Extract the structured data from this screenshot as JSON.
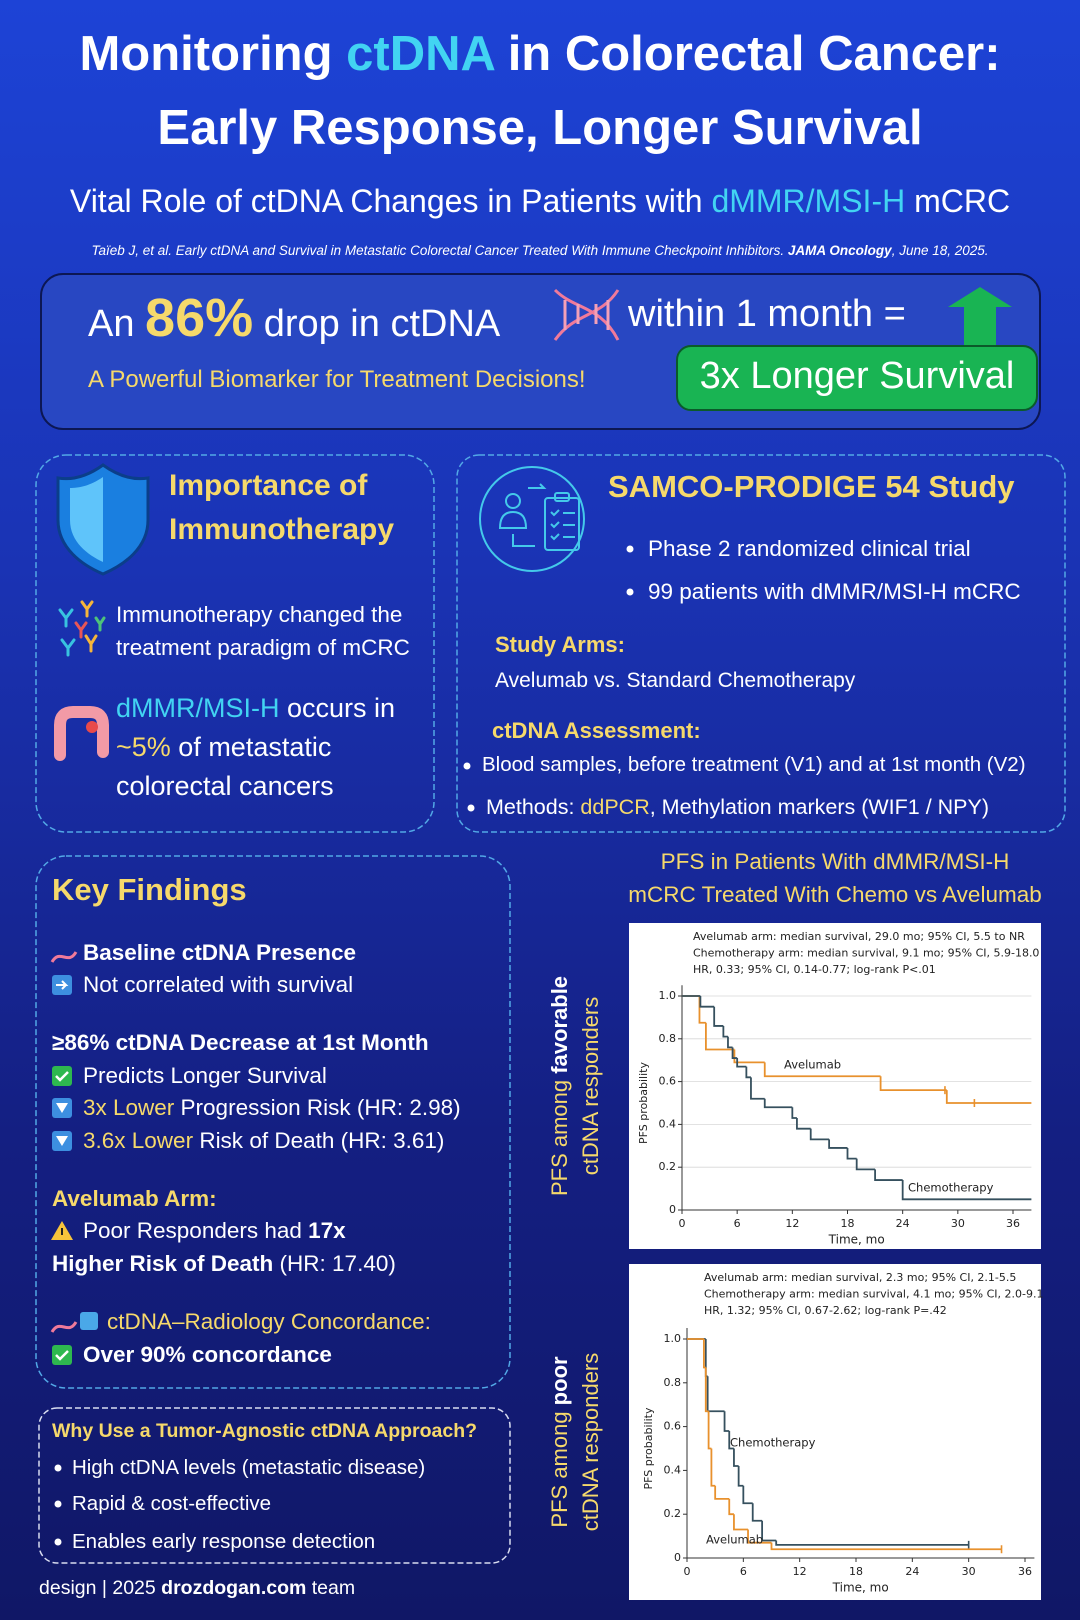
{
  "header": {
    "title_line1": [
      "Monitoring ",
      "ctDNA",
      " in Colorectal Cancer:"
    ],
    "title_line2": "Early Response, Longer Survival",
    "subtitle": [
      "Vital Role of ctDNA Changes in Patients with ",
      "dMMR/MSI-H",
      " mCRC"
    ],
    "citation": [
      "Taïeb J, et al. Early ctDNA and Survival in Metastatic Colorectal Cancer Treated With Immune Checkpoint Inhibitors. ",
      "JAMA Oncology",
      ", June 18, 2025."
    ]
  },
  "banner": {
    "line1": [
      "An ",
      "86%",
      " drop in ctDNA",
      "within 1 month ="
    ],
    "tagline": "A Powerful Biomarker for Treatment Decisions!",
    "result": "3x Longer Survival"
  },
  "immunotherapy": {
    "title_lines": [
      "Importance of",
      "Immunotherapy"
    ],
    "item1_lines": [
      "Immunotherapy changed the",
      "treatment paradigm of mCRC"
    ],
    "item2_lines": [
      [
        "dMMR/MSI-H",
        " occurs in"
      ],
      [
        "~5%",
        " of metastatic"
      ],
      "colorectal cancers"
    ]
  },
  "study": {
    "title": "SAMCO-PRODIGE 54 Study",
    "bullets": [
      "Phase 2 randomized clinical trial",
      "99 patients with dMMR/MSI-H mCRC"
    ],
    "arms_heading": "Study Arms:",
    "arms_text": "Avelumab vs. Standard Chemotherapy",
    "assessment_heading": "ctDNA Assessment:",
    "assessment_bullet1": "Blood samples, before treatment (V1) and at 1st month (V2)",
    "assessment_bullet2": [
      "Methods: ",
      "ddPCR",
      ", Methylation markers (WIF1 / NPY)"
    ]
  },
  "key_findings": {
    "title": "Key Findings",
    "baseline_heading": "Baseline ctDNA Presence",
    "baseline_text": "Not correlated with survival",
    "decrease_heading": "≥86% ctDNA Decrease at 1st Month",
    "decrease_item1": "Predicts Longer Survival",
    "decrease_item2": [
      "3x Lower",
      " Progression Risk (HR: 2.98)"
    ],
    "decrease_item3": [
      "3.6x Lower",
      " Risk of Death (HR: 3.61)"
    ],
    "avelumab_heading": "Avelumab Arm:",
    "avelumab_line1": [
      "Poor Responders had ",
      "17x"
    ],
    "avelumab_line2": [
      "Higher Risk of Death",
      " (HR: 17.40)"
    ],
    "concordance_heading": "ctDNA–Radiology Concordance:",
    "concordance_text": "Over 90% concordance"
  },
  "approach": {
    "title": "Why Use a Tumor-Agnostic ctDNA Approach?",
    "bullets": [
      "High ctDNA levels (metastatic disease)",
      "Rapid & cost-effective",
      "Enables early response detection"
    ]
  },
  "footer": [
    "design | 2025 ",
    "drozdogan.com",
    " team"
  ],
  "chart_section": {
    "title_lines": [
      "PFS in Patients With dMMR/MSI-H",
      "mCRC Treated With Chemo vs Avelumab"
    ]
  },
  "chart_data": [
    {
      "type": "step",
      "side_label": [
        [
          "PFS among ",
          "favorable"
        ],
        "ctDNA responders"
      ],
      "annotations": [
        "Avelumab arm: median survival, 29.0 mo; 95% CI, 5.5 to NR",
        "Chemotherapy arm: median survival, 9.1 mo; 95% CI, 5.9-18.0",
        "HR, 0.33; 95% CI, 0.14-0.77; log-rank P<.01"
      ],
      "ylabel": "PFS probability",
      "xlabel": "Time, mo",
      "xlim": [
        0,
        38
      ],
      "ylim": [
        0,
        1.05
      ],
      "xticks": [
        0,
        6,
        12,
        18,
        24,
        30,
        36
      ],
      "yticks": [
        0,
        0.2,
        0.4,
        0.6,
        0.8,
        {
          "value": 1,
          "label": "1.0"
        }
      ],
      "grid": true,
      "series": [
        {
          "name": "Avelumab",
          "color": "#e8912d",
          "x": [
            0,
            1.9,
            2.6,
            5.7,
            9,
            21.6,
            28.8,
            38
          ],
          "values": [
            1,
            0.875,
            0.75,
            0.69,
            0.625,
            0.56,
            0.5,
            0.5
          ],
          "censored_x": [
            28.6,
            31.8
          ],
          "censored_values": [
            0.56,
            0.5
          ]
        },
        {
          "name": "Chemotherapy",
          "color": "#36505e",
          "x": [
            0,
            2,
            3.5,
            4.5,
            5,
            5.5,
            6,
            7,
            7.5,
            9,
            12,
            12.5,
            14,
            16,
            18,
            19,
            21,
            24,
            38
          ],
          "values": [
            1,
            0.95,
            0.86,
            0.81,
            0.76,
            0.71,
            0.67,
            0.62,
            0.52,
            0.48,
            0.43,
            0.38,
            0.33,
            0.29,
            0.24,
            0.19,
            0.14,
            0.05,
            0.05
          ],
          "censored_x": [],
          "censored_values": []
        }
      ]
    },
    {
      "type": "step",
      "side_label": [
        [
          "PFS among ",
          "poor"
        ],
        "ctDNA responders"
      ],
      "annotations": [
        "Avelumab arm: median survival, 2.3 mo; 95% CI, 2.1-5.5",
        "Chemotherapy arm: median survival, 4.1 mo; 95% CI, 2.0-9.1",
        "HR, 1.32; 95% CI, 0.67-2.62; log-rank P=.42"
      ],
      "ylabel": "PFS probability",
      "xlabel": "Time, mo",
      "xlim": [
        0,
        37
      ],
      "ylim": [
        0,
        1.05
      ],
      "xticks": [
        0,
        6,
        12,
        18,
        24,
        30,
        36
      ],
      "yticks": [
        0,
        0.2,
        0.4,
        0.6,
        0.8,
        {
          "value": 1,
          "label": "1.0"
        }
      ],
      "grid": false,
      "series": [
        {
          "name": "Chemotherapy",
          "color": "#36505e",
          "x": [
            0,
            2,
            2.2,
            4,
            4.5,
            5,
            5.5,
            6,
            7,
            8,
            9.5,
            30
          ],
          "values": [
            1,
            0.83,
            0.67,
            0.58,
            0.5,
            0.42,
            0.33,
            0.25,
            0.17,
            0.08,
            0.06,
            0.06
          ],
          "censored_x": [
            30
          ],
          "censored_values": [
            0.06
          ]
        },
        {
          "name": "Avelumab",
          "color": "#e8912d",
          "x": [
            0,
            1.8,
            2,
            2.3,
            2.6,
            3,
            4.5,
            5,
            6.5,
            9,
            33.5
          ],
          "values": [
            1,
            0.87,
            0.67,
            0.5,
            0.33,
            0.27,
            0.2,
            0.13,
            0.07,
            0.04,
            0.04
          ],
          "censored_x": [
            33.5
          ],
          "censored_values": [
            0.04
          ]
        }
      ]
    }
  ]
}
